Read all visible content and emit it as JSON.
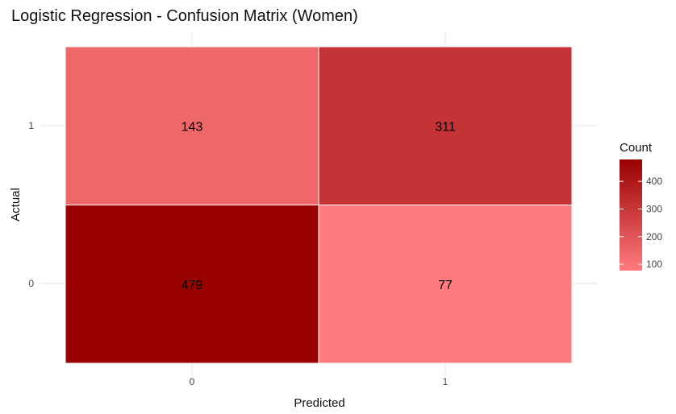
{
  "chart_data": {
    "type": "heatmap",
    "title": "Logistic Regression - Confusion Matrix (Women)",
    "xlabel": "Predicted",
    "ylabel": "Actual",
    "x_categories": [
      "0",
      "1"
    ],
    "y_categories": [
      "0",
      "1"
    ],
    "cells": [
      {
        "actual": "1",
        "predicted": "0",
        "count": 143
      },
      {
        "actual": "1",
        "predicted": "1",
        "count": 311
      },
      {
        "actual": "0",
        "predicted": "0",
        "count": 479
      },
      {
        "actual": "0",
        "predicted": "1",
        "count": 77
      }
    ],
    "color_scale": {
      "low": "#ff7b7e",
      "high": "#990000",
      "domain": [
        77,
        479
      ]
    },
    "legend": {
      "title": "Count",
      "ticks": [
        100,
        200,
        300,
        400
      ],
      "placement": "right"
    },
    "grid": true
  }
}
